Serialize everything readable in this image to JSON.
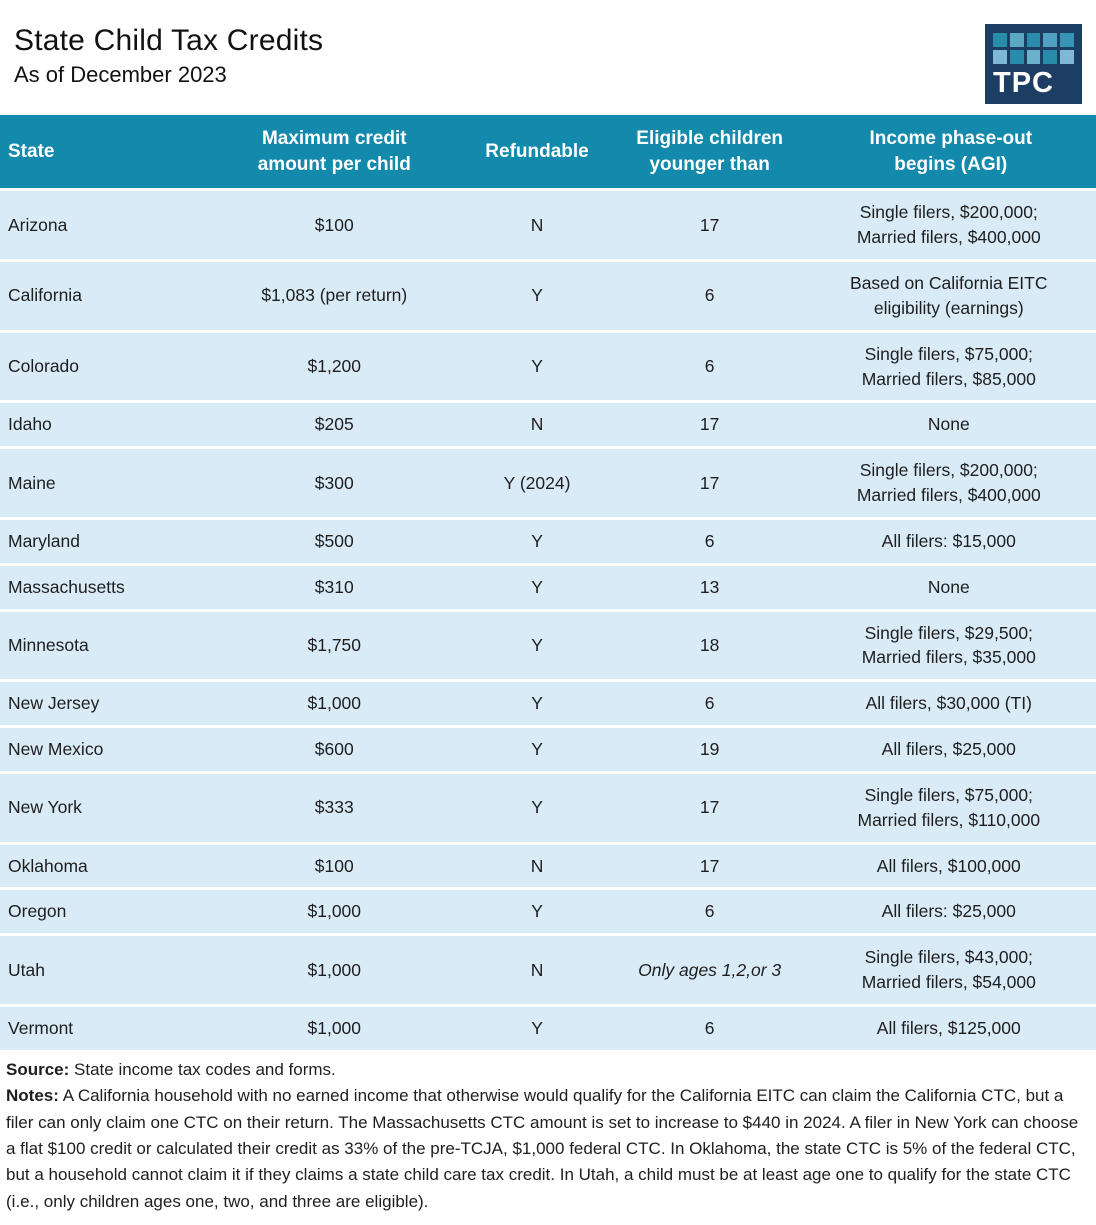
{
  "page": {
    "title": "State Child Tax Credits",
    "subtitle": "As of December 2023"
  },
  "logo": {
    "text": "TPC",
    "navy": "#1c3e63",
    "squares": [
      "#2a8cab",
      "#5aa8c6",
      "#2a8cab",
      "#4fa2c2",
      "#3794b4",
      "#7db9d4",
      "#2a8cab",
      "#6bb1cd",
      "#2a8cab",
      "#7db9d4"
    ]
  },
  "colors": {
    "header_bg": "#1389ac",
    "row_bg": "#d9ebf6",
    "text": "#1e1e20",
    "logo_navy": "#1c3e63"
  },
  "table": {
    "headers": [
      "State",
      "Maximum credit\namount per child",
      "Refundable",
      "Eligible children\nyounger than",
      "Income phase-out\nbegins (AGI)"
    ],
    "rows": [
      {
        "state": "Arizona",
        "max_credit": "$100",
        "refundable": "N",
        "eligible_younger_than": "17",
        "eligible_italic": false,
        "phase_out": "Single filers, $200,000;\nMarried filers, $400,000"
      },
      {
        "state": "California",
        "max_credit": "$1,083 (per return)",
        "refundable": "Y",
        "eligible_younger_than": "6",
        "eligible_italic": false,
        "phase_out": "Based on California EITC\neligibility (earnings)"
      },
      {
        "state": "Colorado",
        "max_credit": "$1,200",
        "refundable": "Y",
        "eligible_younger_than": "6",
        "eligible_italic": false,
        "phase_out": "Single filers, $75,000;\nMarried filers, $85,000"
      },
      {
        "state": "Idaho",
        "max_credit": "$205",
        "refundable": "N",
        "eligible_younger_than": "17",
        "eligible_italic": false,
        "phase_out": "None"
      },
      {
        "state": "Maine",
        "max_credit": "$300",
        "refundable": "Y (2024)",
        "eligible_younger_than": "17",
        "eligible_italic": false,
        "phase_out": "Single filers, $200,000;\nMarried filers, $400,000"
      },
      {
        "state": "Maryland",
        "max_credit": "$500",
        "refundable": "Y",
        "eligible_younger_than": "6",
        "eligible_italic": false,
        "phase_out": "All filers: $15,000"
      },
      {
        "state": "Massachusetts",
        "max_credit": "$310",
        "refundable": "Y",
        "eligible_younger_than": "13",
        "eligible_italic": false,
        "phase_out": "None"
      },
      {
        "state": "Minnesota",
        "max_credit": "$1,750",
        "refundable": "Y",
        "eligible_younger_than": "18",
        "eligible_italic": false,
        "phase_out": "Single filers, $29,500;\nMarried filers, $35,000"
      },
      {
        "state": "New Jersey",
        "max_credit": "$1,000",
        "refundable": "Y",
        "eligible_younger_than": "6",
        "eligible_italic": false,
        "phase_out": "All filers, $30,000 (TI)"
      },
      {
        "state": "New Mexico",
        "max_credit": "$600",
        "refundable": "Y",
        "eligible_younger_than": "19",
        "eligible_italic": false,
        "phase_out": "All filers, $25,000"
      },
      {
        "state": "New York",
        "max_credit": "$333",
        "refundable": "Y",
        "eligible_younger_than": "17",
        "eligible_italic": false,
        "phase_out": "Single filers, $75,000;\nMarried filers, $110,000"
      },
      {
        "state": "Oklahoma",
        "max_credit": "$100",
        "refundable": "N",
        "eligible_younger_than": "17",
        "eligible_italic": false,
        "phase_out": "All filers, $100,000"
      },
      {
        "state": "Oregon",
        "max_credit": "$1,000",
        "refundable": "Y",
        "eligible_younger_than": "6",
        "eligible_italic": false,
        "phase_out": "All filers: $25,000"
      },
      {
        "state": "Utah",
        "max_credit": "$1,000",
        "refundable": "N",
        "eligible_younger_than": "Only ages 1,2,or 3",
        "eligible_italic": true,
        "phase_out": "Single filers, $43,000;\nMarried filers, $54,000"
      },
      {
        "state": "Vermont",
        "max_credit": "$1,000",
        "refundable": "Y",
        "eligible_younger_than": "6",
        "eligible_italic": false,
        "phase_out": "All filers, $125,000"
      }
    ]
  },
  "footer": {
    "source_label": "Source:",
    "source_text": "State income tax codes and forms.",
    "notes_label": "Notes:",
    "notes_text": "A California household with no earned income that otherwise would qualify for the California EITC can claim the California CTC, but a filer can only claim one CTC on their return. The Massachusetts CTC amount is set to increase to $440 in 2024. A filer in New York can choose a flat $100 credit or calculated their credit as 33% of the pre-TCJA, $1,000 federal CTC. In Oklahoma, the state CTC is 5% of the federal CTC, but a household cannot claim it if they claims a state child care tax credit. In Utah, a child must be at least age one to qualify for the state CTC (i.e., only children ages one, two, and three are eligible)."
  },
  "chart_data": {
    "type": "table",
    "title": "State Child Tax Credits",
    "subtitle": "As of December 2023",
    "columns": [
      "State",
      "Maximum credit amount per child",
      "Refundable",
      "Eligible children younger than",
      "Income phase-out begins (AGI)"
    ],
    "rows": [
      [
        "Arizona",
        "$100",
        "N",
        "17",
        "Single filers, $200,000; Married filers, $400,000"
      ],
      [
        "California",
        "$1,083 (per return)",
        "Y",
        "6",
        "Based on California EITC eligibility (earnings)"
      ],
      [
        "Colorado",
        "$1,200",
        "Y",
        "6",
        "Single filers, $75,000; Married filers, $85,000"
      ],
      [
        "Idaho",
        "$205",
        "N",
        "17",
        "None"
      ],
      [
        "Maine",
        "$300",
        "Y (2024)",
        "17",
        "Single filers, $200,000; Married filers, $400,000"
      ],
      [
        "Maryland",
        "$500",
        "Y",
        "6",
        "All filers: $15,000"
      ],
      [
        "Massachusetts",
        "$310",
        "Y",
        "13",
        "None"
      ],
      [
        "Minnesota",
        "$1,750",
        "Y",
        "18",
        "Single filers, $29,500; Married filers, $35,000"
      ],
      [
        "New Jersey",
        "$1,000",
        "Y",
        "6",
        "All filers, $30,000 (TI)"
      ],
      [
        "New Mexico",
        "$600",
        "Y",
        "19",
        "All filers, $25,000"
      ],
      [
        "New York",
        "$333",
        "Y",
        "17",
        "Single filers, $75,000; Married filers, $110,000"
      ],
      [
        "Oklahoma",
        "$100",
        "N",
        "17",
        "All filers, $100,000"
      ],
      [
        "Oregon",
        "$1,000",
        "Y",
        "6",
        "All filers: $25,000"
      ],
      [
        "Utah",
        "$1,000",
        "N",
        "Only ages 1,2,or 3",
        "Single filers, $43,000; Married filers, $54,000"
      ],
      [
        "Vermont",
        "$1,000",
        "Y",
        "6",
        "All filers, $125,000"
      ]
    ]
  }
}
